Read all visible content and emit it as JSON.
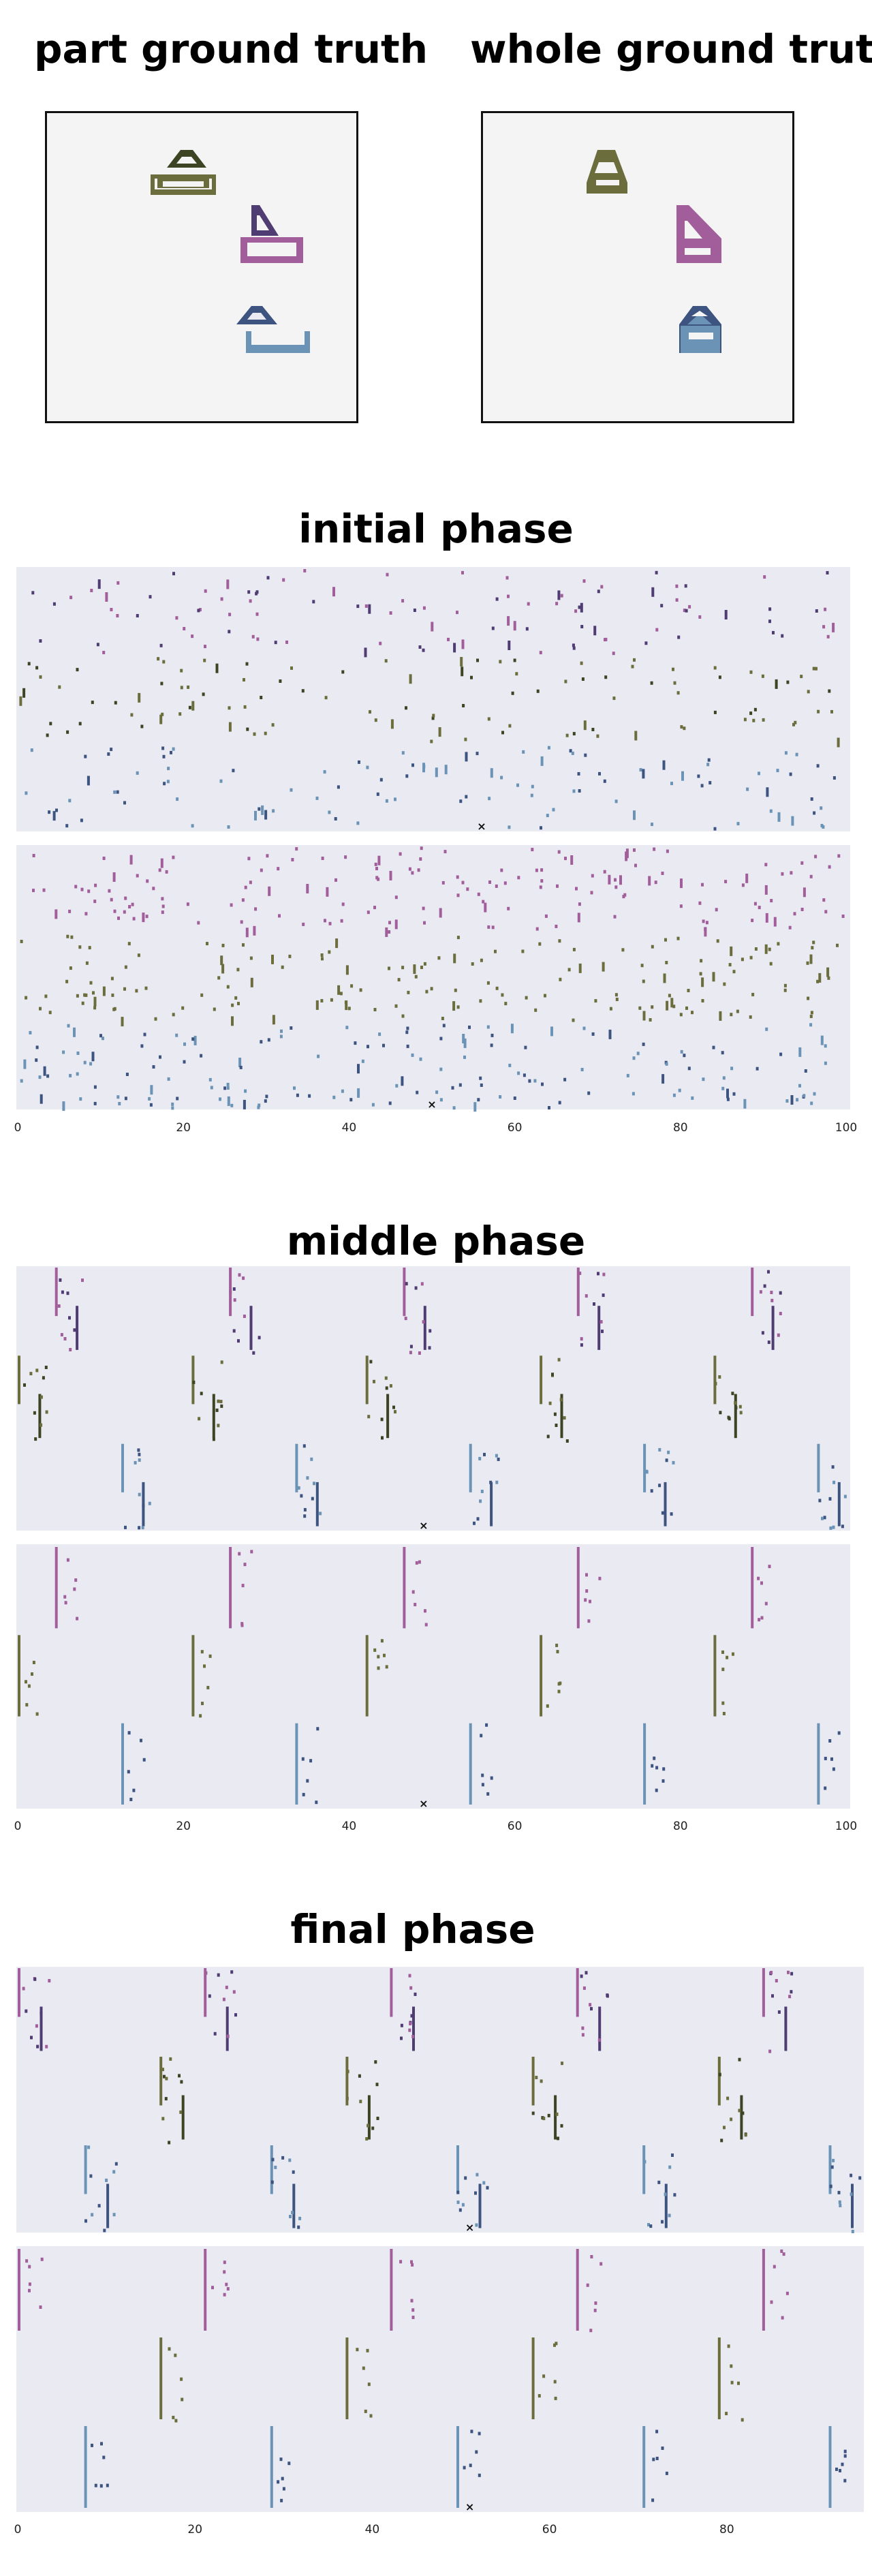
{
  "headings": {
    "part_gt": "part ground truth",
    "whole_gt": "whole ground truth",
    "initial": "initial phase",
    "middle": "middle phase",
    "final": "final phase"
  },
  "colors": {
    "panel_bg": "#eaeaf2",
    "purple": "#a15e9a",
    "dark_purple": "#4f3c73",
    "olive": "#6b6d3c",
    "dark_olive": "#3d4423",
    "steel_blue": "#6b93b5",
    "navy": "#3d5480",
    "marker": "#111111"
  },
  "icons": {
    "part": [
      "olive-boat-top-and-base-icon",
      "purple-sail-and-hull-icon",
      "blue-boat-top-and-base-icon"
    ],
    "whole": [
      "olive-boat-icon",
      "purple-sail-boat-icon",
      "blue-boat-icon"
    ]
  },
  "chart_data": [
    {
      "type": "scatter",
      "phase": "initial",
      "panel": "part",
      "xlim": [
        0,
        100
      ],
      "ticks": [],
      "pattern": "random"
    },
    {
      "type": "scatter",
      "phase": "initial",
      "panel": "whole",
      "xlim": [
        0,
        100
      ],
      "ticks": [
        0,
        20,
        40,
        60,
        80,
        100
      ],
      "pattern": "random"
    },
    {
      "type": "scatter",
      "phase": "middle",
      "panel": "part",
      "xlim": [
        0,
        100
      ],
      "ticks": [],
      "pattern": "bursts",
      "period": 21
    },
    {
      "type": "scatter",
      "phase": "middle",
      "panel": "whole",
      "xlim": [
        0,
        100
      ],
      "ticks": [
        0,
        20,
        40,
        60,
        80,
        100
      ],
      "pattern": "bursts",
      "period": 21
    },
    {
      "type": "scatter",
      "phase": "final",
      "panel": "part",
      "xlim": [
        0,
        95
      ],
      "ticks": [],
      "pattern": "bursts",
      "period": 21
    },
    {
      "type": "scatter",
      "phase": "final",
      "panel": "whole",
      "xlim": [
        0,
        95
      ],
      "ticks": [
        0,
        20,
        40,
        60,
        80
      ],
      "pattern": "bursts",
      "period": 21
    }
  ]
}
